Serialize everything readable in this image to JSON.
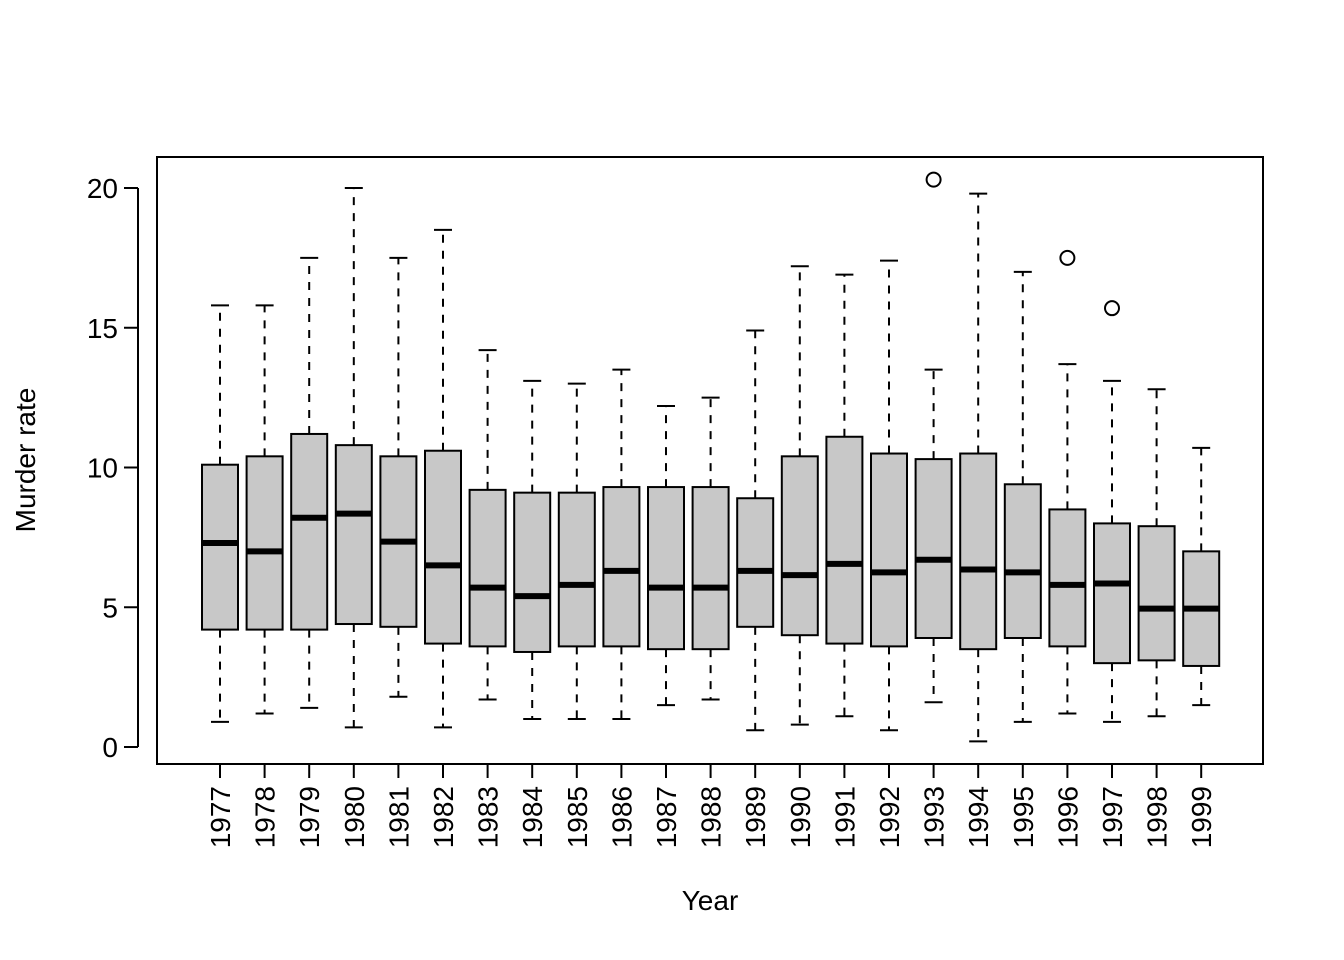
{
  "chart_data": {
    "type": "boxplot",
    "xlabel": "Year",
    "ylabel": "Murder rate",
    "ylim": [
      0,
      20
    ],
    "yticks": [
      0,
      5,
      10,
      15,
      20
    ],
    "box_color": "#c8c8c8",
    "categories": [
      "1977",
      "1978",
      "1979",
      "1980",
      "1981",
      "1982",
      "1983",
      "1984",
      "1985",
      "1986",
      "1987",
      "1988",
      "1989",
      "1990",
      "1991",
      "1992",
      "1993",
      "1994",
      "1995",
      "1996",
      "1997",
      "1998",
      "1999"
    ],
    "boxes": [
      {
        "category": "1977",
        "whisker_low": 0.9,
        "q1": 4.2,
        "median": 7.3,
        "q3": 10.1,
        "whisker_high": 15.8,
        "outliers": []
      },
      {
        "category": "1978",
        "whisker_low": 1.2,
        "q1": 4.2,
        "median": 7.0,
        "q3": 10.4,
        "whisker_high": 15.8,
        "outliers": []
      },
      {
        "category": "1979",
        "whisker_low": 1.4,
        "q1": 4.2,
        "median": 8.2,
        "q3": 11.2,
        "whisker_high": 17.5,
        "outliers": []
      },
      {
        "category": "1980",
        "whisker_low": 0.7,
        "q1": 4.4,
        "median": 8.35,
        "q3": 10.8,
        "whisker_high": 20.0,
        "outliers": []
      },
      {
        "category": "1981",
        "whisker_low": 1.8,
        "q1": 4.3,
        "median": 7.35,
        "q3": 10.4,
        "whisker_high": 17.5,
        "outliers": []
      },
      {
        "category": "1982",
        "whisker_low": 0.7,
        "q1": 3.7,
        "median": 6.5,
        "q3": 10.6,
        "whisker_high": 18.5,
        "outliers": []
      },
      {
        "category": "1983",
        "whisker_low": 1.7,
        "q1": 3.6,
        "median": 5.7,
        "q3": 9.2,
        "whisker_high": 14.2,
        "outliers": []
      },
      {
        "category": "1984",
        "whisker_low": 1.0,
        "q1": 3.4,
        "median": 5.4,
        "q3": 9.1,
        "whisker_high": 13.1,
        "outliers": []
      },
      {
        "category": "1985",
        "whisker_low": 1.0,
        "q1": 3.6,
        "median": 5.8,
        "q3": 9.1,
        "whisker_high": 13.0,
        "outliers": []
      },
      {
        "category": "1986",
        "whisker_low": 1.0,
        "q1": 3.6,
        "median": 6.3,
        "q3": 9.3,
        "whisker_high": 13.5,
        "outliers": []
      },
      {
        "category": "1987",
        "whisker_low": 1.5,
        "q1": 3.5,
        "median": 5.7,
        "q3": 9.3,
        "whisker_high": 12.2,
        "outliers": []
      },
      {
        "category": "1988",
        "whisker_low": 1.7,
        "q1": 3.5,
        "median": 5.7,
        "q3": 9.3,
        "whisker_high": 12.5,
        "outliers": []
      },
      {
        "category": "1989",
        "whisker_low": 0.6,
        "q1": 4.3,
        "median": 6.3,
        "q3": 8.9,
        "whisker_high": 14.9,
        "outliers": []
      },
      {
        "category": "1990",
        "whisker_low": 0.8,
        "q1": 4.0,
        "median": 6.15,
        "q3": 10.4,
        "whisker_high": 17.2,
        "outliers": []
      },
      {
        "category": "1991",
        "whisker_low": 1.1,
        "q1": 3.7,
        "median": 6.55,
        "q3": 11.1,
        "whisker_high": 16.9,
        "outliers": []
      },
      {
        "category": "1992",
        "whisker_low": 0.6,
        "q1": 3.6,
        "median": 6.25,
        "q3": 10.5,
        "whisker_high": 17.4,
        "outliers": []
      },
      {
        "category": "1993",
        "whisker_low": 1.6,
        "q1": 3.9,
        "median": 6.7,
        "q3": 10.3,
        "whisker_high": 13.5,
        "outliers": [
          20.3
        ]
      },
      {
        "category": "1994",
        "whisker_low": 0.2,
        "q1": 3.5,
        "median": 6.35,
        "q3": 10.5,
        "whisker_high": 19.8,
        "outliers": []
      },
      {
        "category": "1995",
        "whisker_low": 0.9,
        "q1": 3.9,
        "median": 6.25,
        "q3": 9.4,
        "whisker_high": 17.0,
        "outliers": []
      },
      {
        "category": "1996",
        "whisker_low": 1.2,
        "q1": 3.6,
        "median": 5.8,
        "q3": 8.5,
        "whisker_high": 13.7,
        "outliers": [
          17.5
        ]
      },
      {
        "category": "1997",
        "whisker_low": 0.9,
        "q1": 3.0,
        "median": 5.85,
        "q3": 8.0,
        "whisker_high": 13.1,
        "outliers": [
          15.7
        ]
      },
      {
        "category": "1998",
        "whisker_low": 1.1,
        "q1": 3.1,
        "median": 4.95,
        "q3": 7.9,
        "whisker_high": 12.8,
        "outliers": []
      },
      {
        "category": "1999",
        "whisker_low": 1.5,
        "q1": 2.9,
        "median": 4.95,
        "q3": 7.0,
        "whisker_high": 10.7,
        "outliers": []
      }
    ]
  }
}
